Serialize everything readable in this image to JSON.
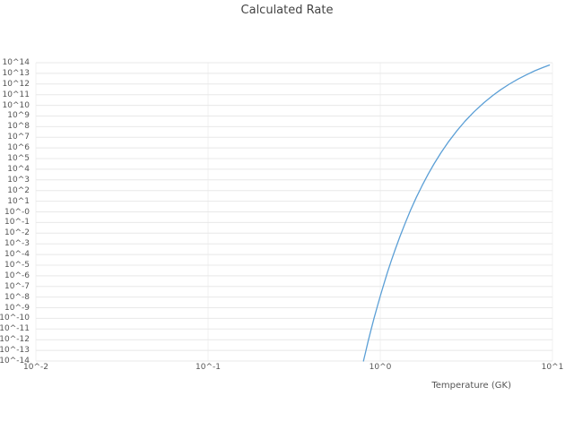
{
  "chart_data": {
    "type": "line",
    "title": "Calculated Rate",
    "xlabel": "Temperature (GK)",
    "ylabel": "",
    "x_scale": "log",
    "y_scale": "log",
    "xlim_exp": [
      -2,
      1
    ],
    "ylim_exp": [
      -14,
      14
    ],
    "grid": true,
    "grid_color_h": "#e8e8e8",
    "grid_color_v": "#f0f0f0",
    "legend": "none",
    "x_ticks": [
      {
        "label": "10^-2",
        "exp": -2
      },
      {
        "label": "10^-1",
        "exp": -1
      },
      {
        "label": "10^0",
        "exp": 0
      },
      {
        "label": "10^1",
        "exp": 1
      }
    ],
    "y_ticks": [
      {
        "label": "10^14",
        "exp": 14
      },
      {
        "label": "10^13",
        "exp": 13
      },
      {
        "label": "10^12",
        "exp": 12
      },
      {
        "label": "10^11",
        "exp": 11
      },
      {
        "label": "10^10",
        "exp": 10
      },
      {
        "label": "10^9",
        "exp": 9
      },
      {
        "label": "10^8",
        "exp": 8
      },
      {
        "label": "10^7",
        "exp": 7
      },
      {
        "label": "10^6",
        "exp": 6
      },
      {
        "label": "10^5",
        "exp": 5
      },
      {
        "label": "10^4",
        "exp": 4
      },
      {
        "label": "10^3",
        "exp": 3
      },
      {
        "label": "10^2",
        "exp": 2
      },
      {
        "label": "10^1",
        "exp": 1
      },
      {
        "label": "10^-0",
        "exp": 0
      },
      {
        "label": "10^-1",
        "exp": -1
      },
      {
        "label": "10^-2",
        "exp": -2
      },
      {
        "label": "10^-3",
        "exp": -3
      },
      {
        "label": "10^-4",
        "exp": -4
      },
      {
        "label": "10^-5",
        "exp": -5
      },
      {
        "label": "10^-6",
        "exp": -6
      },
      {
        "label": "10^-7",
        "exp": -7
      },
      {
        "label": "10^-8",
        "exp": -8
      },
      {
        "label": "10^-9",
        "exp": -9
      },
      {
        "label": "10^-10",
        "exp": -10
      },
      {
        "label": "10^-11",
        "exp": -11
      },
      {
        "label": "10^-12",
        "exp": -12
      },
      {
        "label": "10^-13",
        "exp": -13
      },
      {
        "label": "10^-14",
        "exp": -14
      }
    ],
    "series": [
      {
        "name": "calculated-rate",
        "color": "#5b9fd6",
        "line_width": 1.3,
        "x": [
          0.799,
          0.8,
          0.82,
          0.85,
          0.88,
          0.92,
          0.96,
          1.0,
          1.05,
          1.1,
          1.16,
          1.22,
          1.3,
          1.4,
          1.5,
          1.62,
          1.75,
          1.9,
          2.05,
          2.25,
          2.5,
          2.8,
          3.1,
          3.5,
          4.0,
          4.5,
          5.0,
          5.6,
          6.3,
          7.0,
          7.9,
          8.8,
          9.6
        ],
        "y_exp": [
          -14.0,
          -13.95,
          -13.21,
          -12.17,
          -11.2,
          -10.0,
          -8.91,
          -7.9,
          -6.75,
          -5.7,
          -4.56,
          -3.54,
          -2.32,
          -0.99,
          0.17,
          1.36,
          2.47,
          3.56,
          4.5,
          5.54,
          6.62,
          7.66,
          8.49,
          9.39,
          10.25,
          10.92,
          11.46,
          11.98,
          12.46,
          12.84,
          13.24,
          13.55,
          13.78
        ]
      }
    ]
  }
}
